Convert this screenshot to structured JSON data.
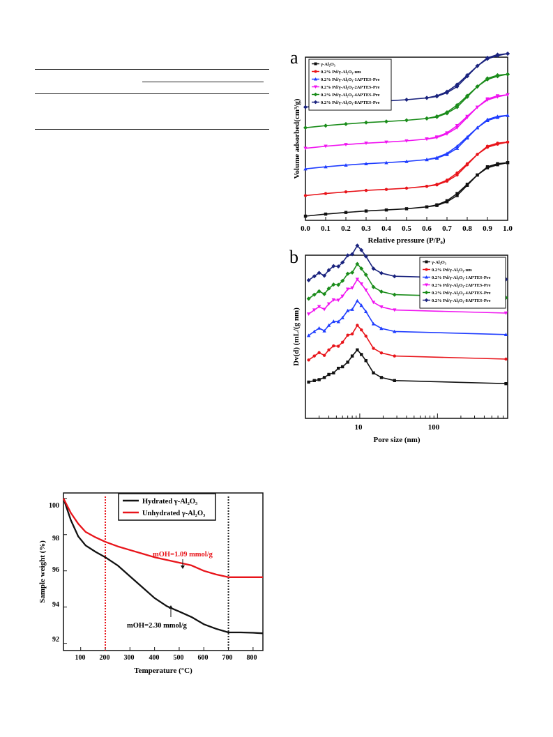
{
  "page": {
    "background": "#ffffff"
  },
  "colors": {
    "black": "#111111",
    "red": "#e8141a",
    "blue": "#1f3dff",
    "magenta": "#f014f0",
    "green": "#1a8c1a",
    "navy": "#1a237e",
    "redline": "#e8141a",
    "darkline": "#222222"
  },
  "series_legend": [
    "γ-Al₂O₃",
    "0.2% Pd/γ-Al₂O₃-um",
    "0.2% Pd/γ-Al₂O₃-1APTES-Pre",
    "0.2% Pd/γ-Al₂O₃-2APTES-Pre",
    "0.2% Pd/γ-Al₂O₃-4APTES-Pre",
    "0.2% Pd/γ-Al₂O₃-8APTES-Pre"
  ],
  "chart_data": [
    {
      "type": "line",
      "panel_label": "a",
      "xlabel": "Relative pressure (P/P₀)",
      "ylabel": "Volume adsorbed(cm³/g)",
      "xlim": [
        0.0,
        1.0
      ],
      "x_ticks": [
        "0.0",
        "0.1",
        "0.2",
        "0.3",
        "0.4",
        "0.5",
        "0.6",
        "0.7",
        "0.8",
        "0.9",
        "1.0"
      ],
      "legend_position": "top-left",
      "series_offsets": [
        0,
        1.0,
        2.3,
        3.3,
        4.3,
        5.3
      ],
      "adsorption_x": [
        0.0,
        0.1,
        0.2,
        0.3,
        0.4,
        0.5,
        0.6,
        0.65,
        0.7,
        0.75,
        0.8,
        0.85,
        0.9,
        0.95,
        1.0
      ],
      "adsorption_y": [
        0.0,
        0.1,
        0.18,
        0.25,
        0.3,
        0.36,
        0.45,
        0.55,
        0.75,
        1.1,
        1.55,
        2.0,
        2.35,
        2.5,
        2.6
      ],
      "desorption_x": [
        1.0,
        0.95,
        0.9,
        0.85,
        0.8,
        0.75,
        0.7,
        0.65,
        0.6
      ],
      "desorption_y": [
        2.6,
        2.55,
        2.4,
        2.0,
        1.5,
        1.0,
        0.7,
        0.52,
        0.45
      ]
    },
    {
      "type": "line",
      "panel_label": "b",
      "xlabel": "Pore size (nm)",
      "ylabel": "Dv(d) (mL/(g nm)",
      "xscale": "log",
      "xlim": [
        2,
        800
      ],
      "x_ticks": [
        "10",
        "100"
      ],
      "legend_position": "top-right",
      "series_offsets": [
        0,
        0.8,
        1.6,
        2.3,
        2.8,
        3.4
      ],
      "x": [
        2.2,
        2.6,
        3.0,
        3.5,
        4.0,
        4.6,
        5.3,
        6.0,
        7.0,
        8.0,
        9.3,
        10.5,
        12.0,
        15.0,
        19.0,
        28.0,
        760.0
      ],
      "y": [
        0.0,
        0.05,
        0.08,
        0.15,
        0.25,
        0.3,
        0.45,
        0.5,
        0.65,
        0.85,
        1.05,
        0.9,
        0.7,
        0.3,
        0.15,
        0.05,
        -0.05
      ]
    },
    {
      "type": "line",
      "xlabel": "Temperature (°C)",
      "ylabel": "Sample weight (%)",
      "xlim": [
        30,
        840
      ],
      "ylim": [
        91.6,
        100.3
      ],
      "x_ticks": [
        "100",
        "200",
        "300",
        "400",
        "500",
        "600",
        "700",
        "800"
      ],
      "y_ticks": [
        "92",
        "94",
        "96",
        "98",
        "100"
      ],
      "legend_position": "top-center",
      "vertical_lines": [
        200,
        700
      ],
      "series": [
        {
          "name": "Hydrated γ-Al₂O₃",
          "x": [
            30,
            60,
            90,
            120,
            160,
            200,
            250,
            300,
            350,
            400,
            450,
            500,
            550,
            600,
            650,
            700,
            750,
            800,
            840
          ],
          "y": [
            100.0,
            98.8,
            97.9,
            97.4,
            97.05,
            96.75,
            96.3,
            95.7,
            95.1,
            94.5,
            94.05,
            93.75,
            93.45,
            93.05,
            92.8,
            92.6,
            92.6,
            92.58,
            92.55
          ]
        },
        {
          "name": "Unhydrated γ-Al₂O₃",
          "x": [
            30,
            60,
            90,
            120,
            160,
            200,
            250,
            300,
            350,
            400,
            450,
            500,
            550,
            600,
            650,
            700,
            750,
            800,
            840
          ],
          "y": [
            100.0,
            99.2,
            98.6,
            98.15,
            97.85,
            97.6,
            97.35,
            97.15,
            96.95,
            96.75,
            96.6,
            96.45,
            96.3,
            96.0,
            95.8,
            95.65,
            95.65,
            95.65,
            95.65
          ]
        }
      ],
      "annotations": [
        "mOH=1.09 mmol/g",
        "mOH=2.30 mmol/g"
      ]
    }
  ]
}
